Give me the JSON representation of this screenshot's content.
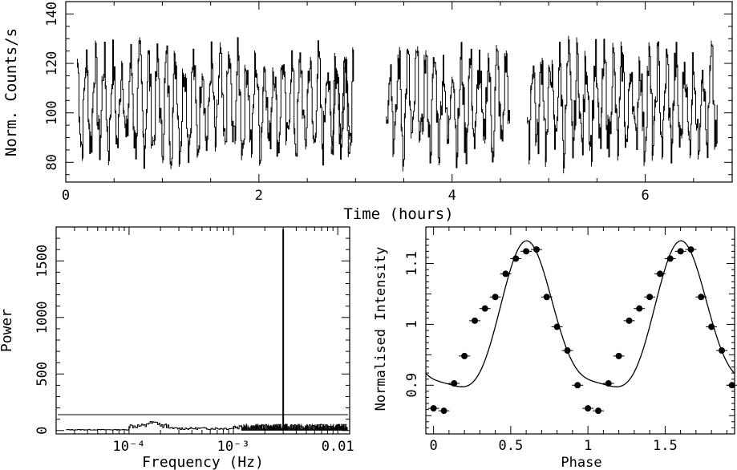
{
  "chart_data": [
    {
      "type": "line",
      "panel": "light-curve",
      "xlabel": "Time (hours)",
      "ylabel": "Norm. Counts/s",
      "xlim": [
        0,
        6.9
      ],
      "ylim": [
        72,
        145
      ],
      "xticks": [
        0,
        2,
        4,
        6
      ],
      "yticks": [
        80,
        100,
        120,
        140
      ],
      "period_hours": 0.0925,
      "segments": [
        {
          "start": 0.12,
          "end": 2.95
        },
        {
          "start": 2.75,
          "end": 2.98
        },
        {
          "start": 3.32,
          "end": 4.6
        },
        {
          "start": 4.78,
          "end": 6.75
        }
      ],
      "note_values": "sampled series; oscillation between ~85 and ~125 counts/s"
    },
    {
      "type": "line",
      "panel": "power-spectrum",
      "xlabel": "Frequency (Hz)",
      "ylabel": "Power",
      "xscale": "log",
      "xlim": [
        2e-05,
        0.013
      ],
      "ylim": [
        -30,
        1800
      ],
      "xtick_labels": [
        "10⁻⁴",
        "10⁻³",
        "0.01"
      ],
      "xticks": [
        0.0001,
        0.001,
        0.01
      ],
      "yticks": [
        0,
        500,
        1000,
        1500
      ],
      "peak": {
        "frequency": 0.003,
        "power": 1780
      },
      "threshold_level": 140
    },
    {
      "type": "scatter",
      "panel": "folded-light-curve",
      "xlabel": "Phase",
      "ylabel": "Normalised Intensity",
      "xlim": [
        -0.05,
        1.95
      ],
      "ylim": [
        0.82,
        1.16
      ],
      "xticks": [
        0,
        0.5,
        1,
        1.5
      ],
      "yticks": [
        0.9,
        1,
        1.1
      ],
      "points": [
        {
          "x": 0.0,
          "y": 0.862
        },
        {
          "x": 0.067,
          "y": 0.858
        },
        {
          "x": 0.133,
          "y": 0.903
        },
        {
          "x": 0.2,
          "y": 0.948
        },
        {
          "x": 0.267,
          "y": 1.006
        },
        {
          "x": 0.333,
          "y": 1.026
        },
        {
          "x": 0.4,
          "y": 1.045
        },
        {
          "x": 0.467,
          "y": 1.083
        },
        {
          "x": 0.533,
          "y": 1.108
        },
        {
          "x": 0.6,
          "y": 1.12
        },
        {
          "x": 0.667,
          "y": 1.123
        },
        {
          "x": 0.733,
          "y": 1.045
        },
        {
          "x": 0.8,
          "y": 0.996
        },
        {
          "x": 0.867,
          "y": 0.957
        },
        {
          "x": 0.933,
          "y": 0.9
        },
        {
          "x": 1.0,
          "y": 0.862
        },
        {
          "x": 1.067,
          "y": 0.858
        },
        {
          "x": 1.133,
          "y": 0.903
        },
        {
          "x": 1.2,
          "y": 0.948
        },
        {
          "x": 1.267,
          "y": 1.006
        },
        {
          "x": 1.333,
          "y": 1.026
        },
        {
          "x": 1.4,
          "y": 1.045
        },
        {
          "x": 1.467,
          "y": 1.083
        },
        {
          "x": 1.533,
          "y": 1.108
        },
        {
          "x": 1.6,
          "y": 1.12
        },
        {
          "x": 1.667,
          "y": 1.123
        },
        {
          "x": 1.733,
          "y": 1.045
        },
        {
          "x": 1.8,
          "y": 0.996
        },
        {
          "x": 1.867,
          "y": 0.957
        },
        {
          "x": 1.933,
          "y": 0.9
        }
      ],
      "model_curve": "smooth periodic fit through points"
    }
  ]
}
